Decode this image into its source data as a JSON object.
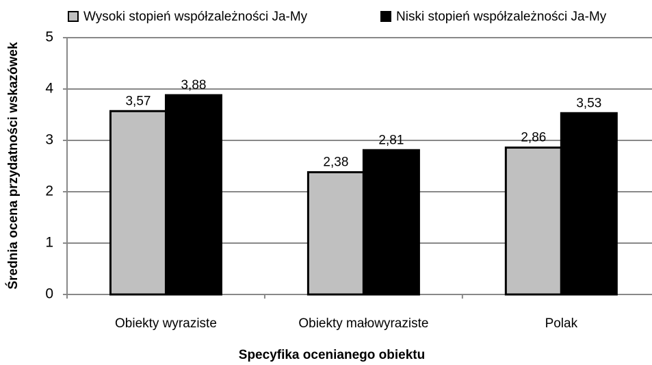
{
  "chart_data": {
    "type": "bar",
    "xlabel": "Specyfika ocenianego obiektu",
    "ylabel": "Średnia ocena przydatności wskazówek",
    "categories": [
      "Obiekty wyraziste",
      "Obiekty małowyraziste",
      "Polak"
    ],
    "series": [
      {
        "name": "Wysoki stopień współzależności Ja-My",
        "color": "#c0c0c0",
        "values": [
          3.57,
          2.38,
          2.86
        ],
        "value_labels": [
          "3,57",
          "2,38",
          "2,86"
        ]
      },
      {
        "name": "Niski stopień współzależności Ja-My",
        "color": "#000000",
        "values": [
          3.88,
          2.81,
          3.53
        ],
        "value_labels": [
          "3,88",
          "2,81",
          "3,53"
        ]
      }
    ],
    "ylim": [
      0,
      5
    ],
    "yticks": [
      0,
      1,
      2,
      3,
      4,
      5
    ],
    "grid": true,
    "legend": "top"
  }
}
